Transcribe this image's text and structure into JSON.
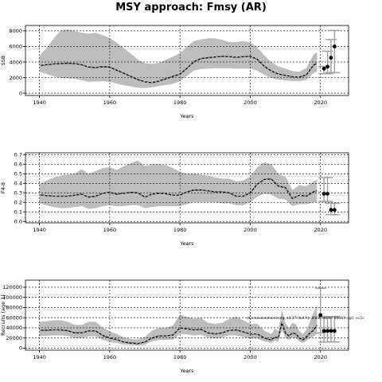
{
  "figure": {
    "title": "MSY approach: Fmsy (AR)",
    "note": "stockassessment.org, sd:27.3a47d, 2020, done: 66043 , git: ec2c"
  },
  "colors": {
    "band": "#bdbdbd",
    "line": "#000000",
    "error": "#9e9e9e",
    "grid": "#000000"
  },
  "chart_data": [
    {
      "type": "line",
      "title": "",
      "xlabel": "Years",
      "ylabel": "SSB",
      "xlim": [
        1936,
        2028
      ],
      "ylim": [
        -300,
        8700
      ],
      "xticks": [
        1940,
        1960,
        1980,
        2000,
        2020
      ],
      "yticks": [
        0,
        2000,
        4000,
        6000,
        8000
      ],
      "ytick_labels": [
        "0",
        "2000",
        "4000",
        "6000",
        "8000"
      ],
      "grid": true,
      "x": [
        1940,
        1942,
        1944,
        1946,
        1948,
        1950,
        1952,
        1954,
        1956,
        1958,
        1960,
        1962,
        1964,
        1966,
        1968,
        1970,
        1972,
        1974,
        1976,
        1978,
        1980,
        1982,
        1984,
        1986,
        1988,
        1990,
        1992,
        1994,
        1996,
        1998,
        2000,
        2002,
        2004,
        2006,
        2008,
        2010,
        2012,
        2014,
        2016,
        2018,
        2019
      ],
      "estimate": [
        3550,
        3650,
        3750,
        3800,
        3850,
        3800,
        3650,
        3350,
        3300,
        3400,
        3350,
        2950,
        2550,
        2150,
        1750,
        1450,
        1350,
        1550,
        1850,
        2150,
        2450,
        3200,
        4050,
        4450,
        4550,
        4650,
        4750,
        4700,
        4600,
        4700,
        4750,
        4350,
        3450,
        2850,
        2450,
        2300,
        2100,
        2050,
        2350,
        3600,
        3850
      ],
      "lower": [
        2750,
        2450,
        2150,
        1950,
        1900,
        1850,
        1650,
        1450,
        1500,
        1550,
        1450,
        1250,
        1000,
        850,
        700,
        650,
        750,
        900,
        1050,
        1200,
        1550,
        2250,
        2900,
        3100,
        3150,
        3200,
        3200,
        3200,
        3150,
        3150,
        3150,
        2900,
        2350,
        1950,
        1750,
        1650,
        1550,
        1550,
        1700,
        2550,
        2800
      ],
      "upper": [
        4800,
        5800,
        7000,
        8050,
        8200,
        8000,
        7750,
        7650,
        7750,
        7450,
        7050,
        6500,
        5800,
        5100,
        4300,
        3850,
        3750,
        3900,
        4300,
        4700,
        5150,
        6000,
        6700,
        6900,
        7050,
        7050,
        6850,
        6550,
        6550,
        6700,
        6500,
        5900,
        4850,
        4000,
        3450,
        3150,
        2850,
        2750,
        3250,
        4950,
        5250
      ],
      "forecast": {
        "x": [
          2021,
          2022,
          2023,
          2024
        ],
        "median": [
          3150,
          3400,
          4550,
          6000
        ],
        "lower": [
          2500,
          2500,
          2650,
          2650
        ],
        "upper": [
          3450,
          5400,
          6900,
          8050
        ]
      }
    },
    {
      "type": "line",
      "title": "",
      "xlabel": "Years",
      "ylabel": "F4-8",
      "xlim": [
        1936,
        2028
      ],
      "ylim": [
        -0.015,
        0.72
      ],
      "xticks": [
        1940,
        1960,
        1980,
        2000,
        2020
      ],
      "yticks": [
        0.0,
        0.1,
        0.2,
        0.3,
        0.4,
        0.5,
        0.6,
        0.7
      ],
      "ytick_labels": [
        "0.0",
        "0.1",
        "0.2",
        "0.3",
        "0.4",
        "0.5",
        "0.6",
        "0.7"
      ],
      "grid": true,
      "x": [
        1940,
        1942,
        1944,
        1946,
        1948,
        1950,
        1952,
        1954,
        1956,
        1958,
        1960,
        1962,
        1964,
        1966,
        1968,
        1970,
        1972,
        1974,
        1976,
        1978,
        1980,
        1982,
        1984,
        1986,
        1988,
        1990,
        1992,
        1994,
        1996,
        1998,
        2000,
        2002,
        2004,
        2006,
        2008,
        2010,
        2012,
        2014,
        2016,
        2018,
        2019
      ],
      "estimate": [
        0.28,
        0.27,
        0.265,
        0.265,
        0.265,
        0.275,
        0.285,
        0.255,
        0.265,
        0.295,
        0.305,
        0.285,
        0.295,
        0.305,
        0.3,
        0.255,
        0.285,
        0.295,
        0.29,
        0.275,
        0.275,
        0.31,
        0.33,
        0.33,
        0.32,
        0.31,
        0.31,
        0.3,
        0.265,
        0.265,
        0.3,
        0.39,
        0.44,
        0.445,
        0.37,
        0.355,
        0.24,
        0.275,
        0.265,
        0.31,
        0.32
      ],
      "lower": [
        0.19,
        0.17,
        0.15,
        0.14,
        0.14,
        0.15,
        0.16,
        0.13,
        0.14,
        0.16,
        0.17,
        0.16,
        0.16,
        0.17,
        0.17,
        0.14,
        0.15,
        0.16,
        0.16,
        0.16,
        0.16,
        0.18,
        0.2,
        0.2,
        0.2,
        0.2,
        0.19,
        0.19,
        0.17,
        0.17,
        0.2,
        0.26,
        0.29,
        0.28,
        0.24,
        0.23,
        0.16,
        0.18,
        0.18,
        0.2,
        0.2
      ],
      "upper": [
        0.39,
        0.43,
        0.46,
        0.48,
        0.49,
        0.5,
        0.55,
        0.5,
        0.53,
        0.56,
        0.57,
        0.54,
        0.58,
        0.61,
        0.64,
        0.58,
        0.6,
        0.6,
        0.59,
        0.56,
        0.52,
        0.5,
        0.5,
        0.49,
        0.48,
        0.46,
        0.45,
        0.45,
        0.42,
        0.43,
        0.47,
        0.57,
        0.62,
        0.6,
        0.5,
        0.47,
        0.33,
        0.38,
        0.37,
        0.42,
        0.44
      ],
      "forecast": {
        "x": [
          2021,
          2022,
          2023,
          2024
        ],
        "median": [
          0.29,
          0.29,
          0.12,
          0.12
        ],
        "lower": [
          0.21,
          0.21,
          0.07,
          0.07
        ],
        "upper": [
          0.46,
          0.46,
          0.19,
          0.19
        ]
      }
    },
    {
      "type": "line",
      "title": "",
      "xlabel": "Years",
      "ylabel": "Recruits (age 1)",
      "xlim": [
        1936,
        2028
      ],
      "ylim": [
        -4000,
        134000
      ],
      "xticks": [
        1940,
        1960,
        1980,
        2000,
        2020
      ],
      "yticks": [
        0,
        20000,
        40000,
        60000,
        80000,
        100000,
        120000
      ],
      "ytick_labels": [
        "0",
        "20000",
        "40000",
        "60000",
        "80000",
        "100000",
        "120000"
      ],
      "grid": true,
      "x": [
        1940,
        1942,
        1944,
        1946,
        1948,
        1950,
        1952,
        1954,
        1956,
        1958,
        1960,
        1962,
        1964,
        1966,
        1968,
        1970,
        1972,
        1974,
        1976,
        1978,
        1980,
        1982,
        1984,
        1986,
        1988,
        1990,
        1992,
        1994,
        1996,
        1998,
        2000,
        2002,
        2004,
        2005,
        2006,
        2007,
        2008,
        2009,
        2010,
        2011,
        2012,
        2013,
        2014,
        2015,
        2016,
        2017,
        2018,
        2019
      ],
      "estimate": [
        35000,
        35500,
        36000,
        36000,
        34500,
        30000,
        30000,
        34000,
        34000,
        25000,
        20000,
        17000,
        12000,
        10000,
        9000,
        12000,
        20000,
        24000,
        24000,
        26000,
        40000,
        38000,
        36000,
        37000,
        30000,
        28000,
        30000,
        35000,
        36000,
        32000,
        28000,
        28000,
        20000,
        18000,
        16000,
        22000,
        20000,
        50000,
        30000,
        24000,
        30000,
        28000,
        20000,
        16000,
        22000,
        30000,
        35000,
        45000
      ],
      "lower": [
        24000,
        24500,
        25000,
        25000,
        24000,
        20000,
        20000,
        23000,
        23000,
        16000,
        12000,
        10000,
        7000,
        6000,
        5000,
        7000,
        13000,
        16000,
        16000,
        17000,
        28000,
        27000,
        25000,
        26000,
        21000,
        19000,
        21000,
        25000,
        25000,
        22000,
        19000,
        19000,
        13000,
        12000,
        10000,
        15000,
        13000,
        36000,
        21000,
        16000,
        21000,
        19000,
        13000,
        10000,
        14000,
        20000,
        23000,
        28000
      ],
      "upper": [
        52000,
        53000,
        55000,
        55000,
        52000,
        46000,
        46000,
        52000,
        52000,
        40000,
        33000,
        28000,
        21000,
        18000,
        17000,
        22000,
        34000,
        40000,
        40000,
        45000,
        66000,
        62000,
        58000,
        60000,
        50000,
        48000,
        50000,
        58000,
        62000,
        55000,
        48000,
        48000,
        34000,
        31000,
        28000,
        38000,
        34000,
        76000,
        50000,
        40000,
        50000,
        47000,
        34000,
        28000,
        36000,
        52000,
        70000,
        85000
      ],
      "forecast": {
        "x": [
          2020,
          2021,
          2022,
          2023,
          2024
        ],
        "median": [
          65000,
          34000,
          34000,
          34000,
          34000
        ],
        "lower": [
          30000,
          12000,
          12000,
          12000,
          12000
        ],
        "upper": [
          118000,
          62000,
          62000,
          62000,
          62000
        ]
      }
    }
  ]
}
